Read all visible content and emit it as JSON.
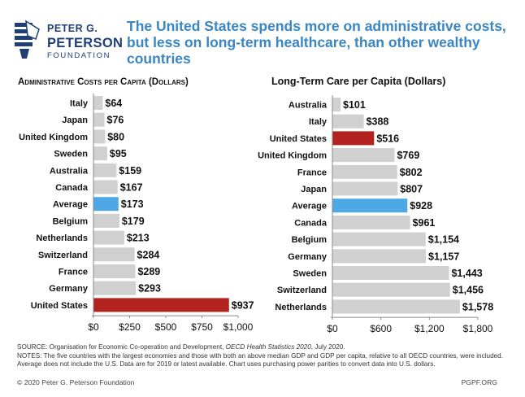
{
  "branding": {
    "line1": "PETER G.",
    "line2": "PETERSON",
    "line3": "FOUNDATION",
    "logo_icon": "torch-icon",
    "colors": {
      "brand_blue": "#1f3f76",
      "headline_blue": "#3a86c2"
    }
  },
  "headline": "The United States spends more on administrative costs, but less on long-term healthcare, than other wealthy countries",
  "colors": {
    "default_bar": "#d0d0d0",
    "us_bar": "#b2231f",
    "average_bar": "#4ea8e6"
  },
  "chart_data": [
    {
      "type": "bar",
      "orientation": "horizontal",
      "title": "Administrative Costs per Capita (Dollars)",
      "categories": [
        "Italy",
        "Japan",
        "United Kingdom",
        "Sweden",
        "Australia",
        "Canada",
        "Average",
        "Belgium",
        "Netherlands",
        "Switzerland",
        "France",
        "Germany",
        "United States"
      ],
      "values": [
        64,
        76,
        80,
        95,
        159,
        167,
        173,
        179,
        213,
        284,
        289,
        293,
        937
      ],
      "labels": [
        "$64",
        "$76",
        "$80",
        "$95",
        "$159",
        "$167",
        "$173",
        "$179",
        "$213",
        "$284",
        "$289",
        "$293",
        "$937"
      ],
      "highlight": {
        "United States": "us",
        "Average": "average"
      },
      "xlim": [
        0,
        1000
      ],
      "xticks": [
        0,
        250,
        500,
        750,
        1000
      ],
      "xtick_labels": [
        "$0",
        "$250",
        "$500",
        "$750",
        "$1,000"
      ],
      "xlabel": "",
      "ylabel": "",
      "grid": false
    },
    {
      "type": "bar",
      "orientation": "horizontal",
      "title": "Long-Term Care per Capita (Dollars)",
      "categories": [
        "Australia",
        "Italy",
        "United States",
        "United Kingdom",
        "France",
        "Japan",
        "Average",
        "Canada",
        "Belgium",
        "Germany",
        "Sweden",
        "Switzerland",
        "Netherlands"
      ],
      "values": [
        101,
        388,
        516,
        769,
        802,
        807,
        928,
        961,
        1154,
        1157,
        1443,
        1456,
        1578
      ],
      "labels": [
        "$101",
        "$388",
        "$516",
        "$769",
        "$802",
        "$807",
        "$928",
        "$961",
        "$1,154",
        "$1,157",
        "$1,443",
        "$1,456",
        "$1,578"
      ],
      "highlight": {
        "United States": "us",
        "Average": "average"
      },
      "xlim": [
        0,
        1800
      ],
      "xticks": [
        0,
        600,
        1200,
        1800
      ],
      "xtick_labels": [
        "$0",
        "$600",
        "$1,200",
        "$1,800"
      ],
      "xlabel": "",
      "ylabel": "",
      "grid": false
    }
  ],
  "footer": {
    "source_prefix": "SOURCE: Organisation for Economic Co-operation and Development, ",
    "source_title": "OECD Health Statistics 2020",
    "source_suffix": ", July 2020.",
    "notes": "NOTES: The five countries with the largest economies and those with both an above median GDP and GDP per capita, relative to all OECD countries, were included. Average does not include the U.S. Data are for 2019 or latest available. Chart uses purchasing power parities to convert data into U.S. dollars.",
    "copyright": "© 2020 Peter G. Peterson Foundation",
    "site": "PGPF.ORG"
  }
}
